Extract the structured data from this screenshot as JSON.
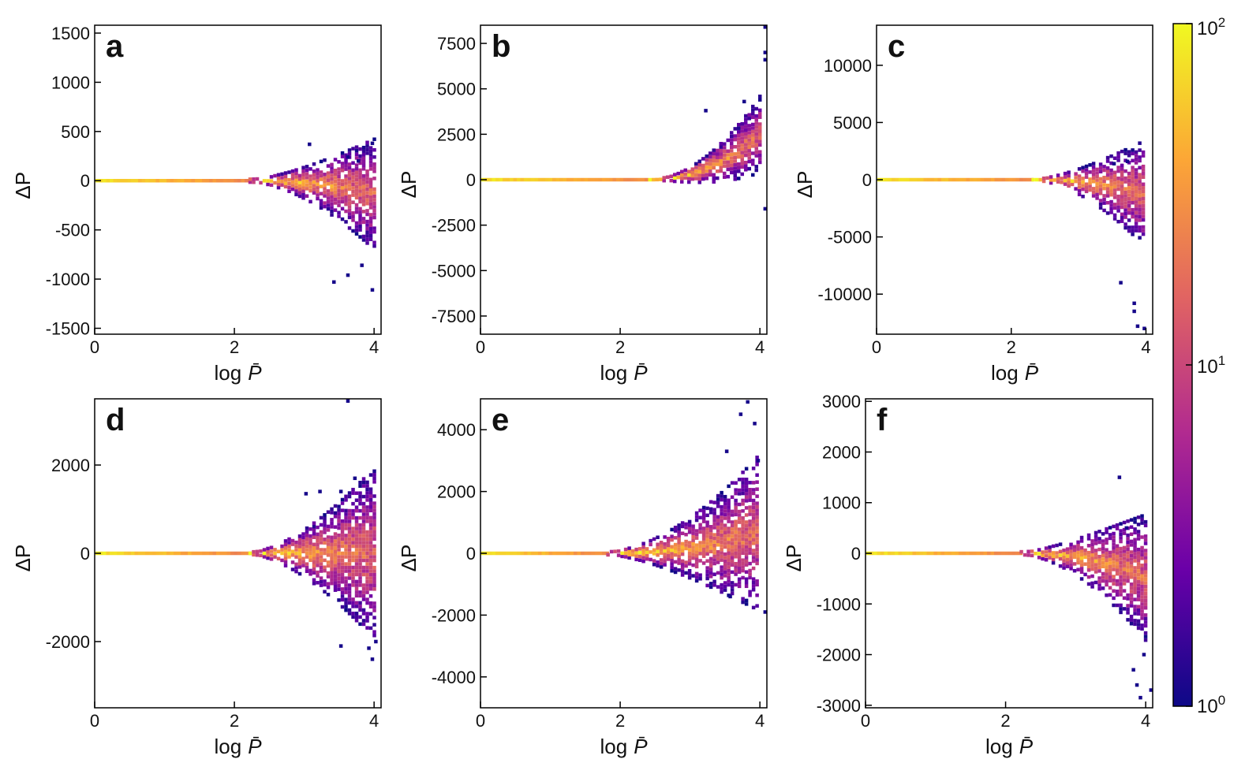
{
  "chart_data": [
    {
      "type": "heatmap",
      "panel": "a",
      "xlabel_main": "log",
      "xlabel_var": "P̄",
      "ylabel": "ΔP",
      "xlim": [
        0,
        4.1
      ],
      "ylim": [
        -1560,
        1580
      ],
      "xticks": [
        0,
        2,
        4
      ],
      "yticks": [
        1500,
        1000,
        500,
        0,
        -500,
        -1000,
        -1500
      ],
      "ytick_labels": [
        "1500",
        "1000",
        "500",
        "0",
        "-500",
        "-1000",
        "-1500"
      ],
      "trend": {
        "x_start": 2.2,
        "slope": -0.35,
        "spread_base": 30,
        "spread_growth": 0.35,
        "mean_scale": 400
      },
      "outliers": [
        [
          3.05,
          370
        ],
        [
          3.6,
          240
        ],
        [
          3.75,
          200
        ],
        [
          3.95,
          380
        ],
        [
          3.6,
          -960
        ],
        [
          3.4,
          -1030
        ],
        [
          3.95,
          -1110
        ],
        [
          3.8,
          -860
        ]
      ]
    },
    {
      "type": "heatmap",
      "panel": "b",
      "xlabel_main": "log",
      "xlabel_var": "P̄",
      "ylabel": "ΔP",
      "xlim": [
        0,
        4.1
      ],
      "ylim": [
        -8500,
        8500
      ],
      "xticks": [
        0,
        2,
        4
      ],
      "yticks": [
        7500,
        5000,
        2500,
        0,
        -2500,
        -5000,
        -7500
      ],
      "ytick_labels": [
        "7500",
        "5000",
        "2500",
        "0",
        "-2500",
        "-5000",
        "-7500"
      ],
      "trend": {
        "x_start": 2.4,
        "slope": 1.0,
        "spread_base": 80,
        "spread_growth": 0.25,
        "mean_scale": 2500
      },
      "outliers": [
        [
          4.05,
          8400
        ],
        [
          4.05,
          7000
        ],
        [
          4.05,
          6600
        ],
        [
          3.2,
          3800
        ],
        [
          4.05,
          -1600
        ],
        [
          3.75,
          4300
        ]
      ]
    },
    {
      "type": "heatmap",
      "panel": "c",
      "xlabel_main": "log",
      "xlabel_var": "P̄",
      "ylabel": "ΔP",
      "xlim": [
        0,
        4.1
      ],
      "ylim": [
        -13500,
        13500
      ],
      "xticks": [
        0,
        2,
        4
      ],
      "yticks": [
        10000,
        5000,
        0,
        -5000,
        -10000
      ],
      "ytick_labels": [
        "10000",
        "5000",
        "0",
        "-5000",
        "-10000"
      ],
      "trend": {
        "x_start": 2.3,
        "slope": -0.5,
        "spread_base": 150,
        "spread_growth": 0.35,
        "mean_scale": 2500
      },
      "outliers": [
        [
          3.6,
          -9000
        ],
        [
          3.8,
          -10800
        ],
        [
          3.8,
          -11500
        ],
        [
          3.95,
          -13000
        ],
        [
          3.85,
          -12800
        ],
        [
          3.5,
          1400
        ],
        [
          3.7,
          1600
        ]
      ]
    },
    {
      "type": "heatmap",
      "panel": "d",
      "xlabel_main": "log",
      "xlabel_var": "P̄",
      "ylabel": "ΔP",
      "xlim": [
        0,
        4.1
      ],
      "ylim": [
        -3500,
        3500
      ],
      "xticks": [
        0,
        2,
        4
      ],
      "yticks": [
        2000,
        0,
        -2000
      ],
      "ytick_labels": [
        "2000",
        "0",
        "-2000"
      ],
      "trend": {
        "x_start": 2.2,
        "slope": 0.0,
        "spread_base": 60,
        "spread_growth": 0.55,
        "mean_scale": 1000
      },
      "outliers": [
        [
          3.6,
          3450
        ],
        [
          3.7,
          1700
        ],
        [
          3.5,
          1400
        ],
        [
          3.0,
          1350
        ],
        [
          3.2,
          1400
        ],
        [
          3.5,
          -2100
        ],
        [
          3.95,
          -2400
        ],
        [
          4.0,
          -2000
        ],
        [
          3.9,
          -2150
        ]
      ]
    },
    {
      "type": "heatmap",
      "panel": "e",
      "xlabel_main": "log",
      "xlabel_var": "P̄",
      "ylabel": "ΔP",
      "xlim": [
        0,
        4.1
      ],
      "ylim": [
        -5000,
        5000
      ],
      "xticks": [
        0,
        2,
        4
      ],
      "yticks": [
        4000,
        2000,
        0,
        -2000,
        -4000
      ],
      "ytick_labels": [
        "4000",
        "2000",
        "0",
        "-2000",
        "-4000"
      ],
      "trend": {
        "x_start": 1.8,
        "slope": 0.45,
        "spread_base": 100,
        "spread_growth": 0.5,
        "mean_scale": 1500
      },
      "outliers": [
        [
          3.8,
          4900
        ],
        [
          3.7,
          4500
        ],
        [
          3.9,
          4200
        ],
        [
          3.5,
          3300
        ],
        [
          3.95,
          3000
        ],
        [
          4.05,
          -1900
        ],
        [
          3.55,
          -1400
        ]
      ]
    },
    {
      "type": "heatmap",
      "panel": "f",
      "xlabel_main": "log",
      "xlabel_var": "P̄",
      "ylabel": "ΔP",
      "xlim": [
        0,
        4.1
      ],
      "ylim": [
        -3050,
        3050
      ],
      "xticks": [
        0,
        2,
        4
      ],
      "yticks": [
        3000,
        2000,
        1000,
        0,
        -1000,
        -2000,
        -3000
      ],
      "ytick_labels": [
        "3000",
        "2000",
        "1000",
        "0",
        "-1000",
        "-2000",
        "-3000"
      ],
      "trend": {
        "x_start": 2.2,
        "slope": -0.6,
        "spread_base": 60,
        "spread_growth": 0.4,
        "mean_scale": 800
      },
      "outliers": [
        [
          3.6,
          1500
        ],
        [
          3.7,
          500
        ],
        [
          3.85,
          -2600
        ],
        [
          3.9,
          -2850
        ],
        [
          4.05,
          -2700
        ],
        [
          3.8,
          -2300
        ],
        [
          3.95,
          -2000
        ]
      ]
    }
  ],
  "colorbar": {
    "scale": "log",
    "min": 1,
    "max": 100,
    "colormap": "plasma",
    "colors": [
      "#0d0887",
      "#6a00a8",
      "#b12a90",
      "#e16462",
      "#fca636",
      "#f0f921"
    ],
    "tick_base": "10",
    "ticks": [
      {
        "exp": "2",
        "value": 100
      },
      {
        "exp": "1",
        "value": 10
      },
      {
        "exp": "0",
        "value": 1
      }
    ]
  }
}
